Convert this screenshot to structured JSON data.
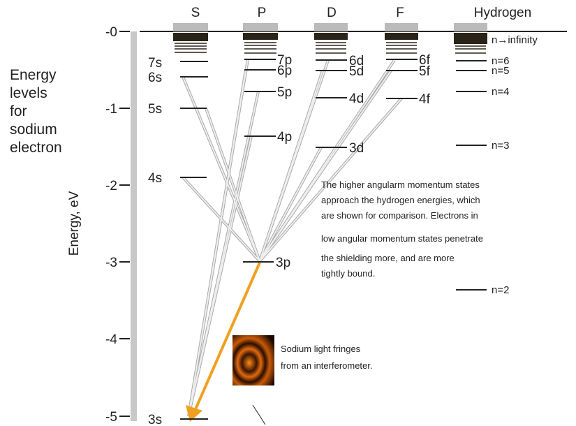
{
  "columns": [
    "S",
    "P",
    "D",
    "F",
    "Hydrogen"
  ],
  "title_lines": [
    "Energy",
    "levels",
    "for",
    "sodium",
    "electron"
  ],
  "axis_label": "Energy, eV",
  "axis_ticks": [
    "-0",
    "-1",
    "-2",
    "-3",
    "-4",
    "-5"
  ],
  "levels": {
    "s": [
      "7s",
      "6s",
      "5s",
      "4s",
      "3s"
    ],
    "p": [
      "7p",
      "6p",
      "5p",
      "4p",
      "3p"
    ],
    "d": [
      "6d",
      "5d",
      "4d",
      "3d"
    ],
    "f": [
      "6f",
      "5f",
      "4f"
    ],
    "hydrogen": [
      "n→infinity",
      "n=6",
      "n=5",
      "n=4",
      "n=3",
      "n=2"
    ]
  },
  "note_lines": [
    "The higher angularm momentum states",
    "approach the hydrogen energies, which",
    "are shown for comparison. Electrons in",
    "low angular momentum states penetrate",
    "the shielding more, and are more",
    "tightly bound."
  ],
  "caption_lines": [
    "Sodium light fringes",
    "from an interferometer."
  ]
}
